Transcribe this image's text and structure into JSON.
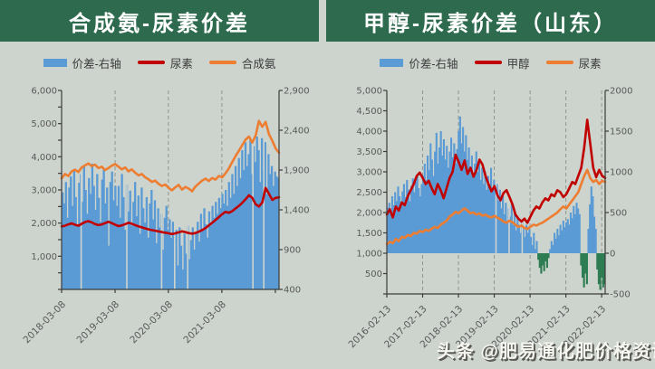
{
  "page": {
    "background": "#cdd4ce",
    "title_bar_color": "#2e6b4e",
    "watermark": "头条 @肥易通化肥价格资讯"
  },
  "chart_data": [
    {
      "type": "area-line-combo",
      "title": "合成氨-尿素价差",
      "legend": [
        {
          "kind": "area",
          "color": "#5b9bd5",
          "label": "价差-右轴"
        },
        {
          "kind": "line",
          "color": "#c00000",
          "label": "尿素"
        },
        {
          "kind": "line",
          "color": "#ed7d31",
          "label": "合成氨"
        }
      ],
      "left_axis": {
        "min": 0,
        "max": 6000,
        "tick_step": 500,
        "labels": [
          "6,000",
          "5,000",
          "4,000",
          "3,000",
          "2,000",
          "1,000"
        ],
        "label_values": [
          6000,
          5000,
          4000,
          3000,
          2000,
          1000
        ]
      },
      "right_axis": {
        "min": 400,
        "max": 2900,
        "labels": [
          "2,900",
          "2,400",
          "1,900",
          "1,400",
          "900",
          "400"
        ],
        "label_values": [
          2900,
          2400,
          1900,
          1400,
          900,
          400
        ]
      },
      "x_axis": {
        "ticks": [
          {
            "f": 0.0,
            "label": "2018-03-08"
          },
          {
            "f": 0.246,
            "label": "2019-03-08"
          },
          {
            "f": 0.491,
            "label": "2020-03-08"
          },
          {
            "f": 0.737,
            "label": "2021-03-08"
          },
          {
            "f": 0.983,
            "label": ""
          }
        ],
        "gridlines": [
          0.246,
          0.491,
          0.737
        ]
      },
      "gaps": [
        0.09,
        0.3,
        0.46,
        0.52,
        0.58,
        0.88,
        0.93
      ],
      "series": {
        "spread": {
          "name": "价差-右轴",
          "axis": "right",
          "color_pos": "#5b9bd5",
          "color_neg": "#2e7d52",
          "values": [
            1620,
            1480,
            1750,
            1300,
            1680,
            1820,
            1450,
            1900,
            1560,
            1200,
            1740,
            1850,
            1500,
            1950,
            1650,
            1350,
            1800,
            1600,
            1980,
            1700,
            1400,
            1850,
            1550,
            1250,
            1780,
            1920,
            1480,
            1680,
            950,
            1750,
            1880,
            1520,
            1700,
            1450,
            1700,
            1300,
            1850,
            1560,
            1150,
            1720,
            1380,
            1640,
            1200,
            1500,
            1750,
            1320,
            1580,
            1100,
            1680,
            1420,
            1240,
            1560,
            1050,
            1480,
            1650,
            1280,
            1520,
            980,
            1420,
            1180,
            1350,
            900,
            1300,
            1450,
            1150,
            1280,
            1050,
            1250,
            880,
            1150,
            700,
            1180,
            950,
            650,
            1100,
            850,
            1200,
            780,
            1020,
            1180,
            900,
            1100,
            1250,
            1000,
            1350,
            1150,
            1420,
            1220,
            1050,
            1380,
            1200,
            1450,
            1300,
            1500,
            1350,
            1550,
            1420,
            1600,
            1480,
            1650,
            1450,
            1750,
            1550,
            1850,
            1600,
            1950,
            1700,
            2050,
            1800,
            2150,
            1900,
            2250,
            1950,
            2100,
            2280,
            1850,
            2200,
            2000,
            2320,
            2150,
            1750,
            2300,
            1900,
            2250,
            1600,
            2100,
            1850,
            1950,
            1700,
            1880,
            1820,
            1800
          ]
        },
        "lines": [
          {
            "name": "尿素",
            "axis": "left",
            "color": "#c00000",
            "values": [
              1900,
              1920,
              1960,
              1990,
              1950,
              1920,
              1980,
              2030,
              2060,
              2020,
              1970,
              1940,
              1960,
              2000,
              2040,
              2000,
              1950,
              1910,
              1930,
              1970,
              2010,
              1980,
              1940,
              1900,
              1870,
              1840,
              1810,
              1790,
              1770,
              1750,
              1730,
              1710,
              1690,
              1670,
              1690,
              1720,
              1750,
              1730,
              1700,
              1680,
              1700,
              1740,
              1790,
              1850,
              1930,
              2010,
              2090,
              2180,
              2270,
              2340,
              2310,
              2360,
              2440,
              2520,
              2610,
              2720,
              2840,
              2760,
              2570,
              2500,
              2620,
              3060,
              2880,
              2700,
              2760,
              2780
            ]
          },
          {
            "name": "合成氨",
            "axis": "left",
            "color": "#ed7d31",
            "values": [
              3350,
              3480,
              3420,
              3560,
              3610,
              3540,
              3680,
              3740,
              3800,
              3720,
              3760,
              3660,
              3700,
              3600,
              3660,
              3730,
              3780,
              3700,
              3620,
              3680,
              3560,
              3620,
              3520,
              3440,
              3480,
              3380,
              3320,
              3240,
              3280,
              3180,
              3120,
              3160,
              3060,
              2990,
              3080,
              3150,
              3010,
              3090,
              3040,
              2960,
              3100,
              3190,
              3280,
              3340,
              3270,
              3360,
              3310,
              3420,
              3380,
              3500,
              3650,
              3840,
              4020,
              4180,
              4350,
              4520,
              4610,
              4430,
              4640,
              5080,
              4900,
              5050,
              4680,
              4480,
              4250,
              4120
            ]
          }
        ]
      }
    },
    {
      "type": "area-line-combo",
      "title": "甲醇-尿素价差（山东）",
      "legend": [
        {
          "kind": "area",
          "color": "#5b9bd5",
          "label": "价差-右轴"
        },
        {
          "kind": "line",
          "color": "#c00000",
          "label": "甲醇"
        },
        {
          "kind": "line",
          "color": "#ed7d31",
          "label": "尿素"
        }
      ],
      "left_axis": {
        "min": 0,
        "max": 5000,
        "tick_step": 500,
        "labels": [
          "5,000",
          "4,500",
          "4,000",
          "3,500",
          "3,000",
          "2,500",
          "2,000",
          "1,500",
          "1,000",
          "500"
        ],
        "label_values": [
          5000,
          4500,
          4000,
          3500,
          3000,
          2500,
          2000,
          1500,
          1000,
          500
        ]
      },
      "right_axis": {
        "min": -500,
        "max": 2000,
        "labels": [
          "2000",
          "1500",
          "1000",
          "500",
          "0",
          "-500"
        ],
        "label_values": [
          2000,
          1500,
          1000,
          500,
          0,
          -500
        ]
      },
      "x_axis": {
        "ticks": [
          {
            "f": 0.0,
            "label": "2016-02-13"
          },
          {
            "f": 0.164,
            "label": "2017-02-13"
          },
          {
            "f": 0.328,
            "label": "2018-02-13"
          },
          {
            "f": 0.492,
            "label": "2019-02-13"
          },
          {
            "f": 0.656,
            "label": "2020-02-13"
          },
          {
            "f": 0.82,
            "label": "2021-02-13"
          },
          {
            "f": 0.984,
            "label": "2022-02-13"
          }
        ],
        "gridlines": [
          0.164,
          0.328,
          0.492,
          0.656,
          0.82,
          0.984
        ]
      },
      "gaps": [
        0.5,
        0.56,
        0.62
      ],
      "series": {
        "spread": {
          "name": "价差-右轴",
          "axis": "right",
          "color_pos": "#5b9bd5",
          "color_neg": "#2e7d52",
          "values": [
            560,
            620,
            480,
            700,
            590,
            750,
            640,
            820,
            700,
            580,
            760,
            850,
            690,
            900,
            780,
            640,
            830,
            920,
            750,
            880,
            960,
            800,
            700,
            850,
            950,
            1100,
            900,
            1200,
            1020,
            1350,
            1150,
            950,
            1250,
            1480,
            1100,
            1300,
            1500,
            1200,
            1400,
            1150,
            1320,
            1050,
            1250,
            1420,
            1180,
            1350,
            1100,
            1280,
            1500,
            1680,
            1350,
            1550,
            1250,
            1450,
            1150,
            1300,
            1050,
            1200,
            950,
            1100,
            1250,
            1000,
            1150,
            900,
            1050,
            850,
            1000,
            780,
            950,
            850,
            1050,
            800,
            900,
            750,
            850,
            650,
            780,
            550,
            700,
            480,
            620,
            400,
            550,
            450,
            600,
            350,
            500,
            280,
            450,
            350,
            250,
            400,
            300,
            200,
            350,
            250,
            300,
            200,
            100,
            250,
            50,
            150,
            -80,
            -180,
            -250,
            -150,
            -220,
            -100,
            -180,
            -60,
            50,
            150,
            100,
            250,
            180,
            300,
            220,
            350,
            280,
            400,
            320,
            380,
            420,
            350,
            500,
            430,
            580,
            480,
            620,
            550,
            480,
            -150,
            -300,
            -420,
            -250,
            -380,
            300,
            600,
            820,
            700,
            450,
            300,
            -200,
            -380,
            -450,
            -300,
            -420,
            -380
          ]
        },
        "lines": [
          {
            "name": "甲醇",
            "axis": "left",
            "color": "#c00000",
            "values": [
              1950,
              2080,
              1880,
              2150,
              2050,
              2250,
              2180,
              2400,
              2550,
              2700,
              2900,
              2980,
              2850,
              2700,
              2780,
              2600,
              2450,
              2700,
              2550,
              2350,
              2600,
              2850,
              3000,
              3420,
              3250,
              3050,
              3280,
              2950,
              3100,
              2880,
              3050,
              3300,
              3180,
              2900,
              2700,
              2520,
              2650,
              2420,
              2300,
              2480,
              2550,
              2380,
              2200,
              1950,
              1850,
              1780,
              1850,
              1750,
              1900,
              2050,
              2150,
              2100,
              2250,
              2350,
              2300,
              2450,
              2400,
              2550,
              2500,
              2380,
              2450,
              2600,
              2750,
              2700,
              2900,
              3100,
              3600,
              4280,
              3700,
              3100,
              2870,
              3050,
              2900,
              2850
            ]
          },
          {
            "name": "尿素",
            "axis": "left",
            "color": "#ed7d31",
            "values": [
              1220,
              1280,
              1250,
              1350,
              1300,
              1400,
              1380,
              1450,
              1420,
              1500,
              1480,
              1550,
              1520,
              1580,
              1550,
              1600,
              1650,
              1620,
              1700,
              1750,
              1800,
              1900,
              1950,
              2020,
              1980,
              2050,
              2100,
              2050,
              1980,
              2000,
              1950,
              1980,
              1920,
              1950,
              1900,
              1880,
              1920,
              1870,
              1830,
              1780,
              1750,
              1800,
              1760,
              1700,
              1650,
              1680,
              1620,
              1600,
              1650,
              1700,
              1680,
              1720,
              1750,
              1800,
              1850,
              1900,
              1950,
              2000,
              2080,
              2150,
              2100,
              2200,
              2300,
              2400,
              2500,
              2700,
              2900,
              3050,
              2850,
              2750,
              2800,
              2700,
              2780,
              2750
            ]
          }
        ]
      }
    }
  ]
}
